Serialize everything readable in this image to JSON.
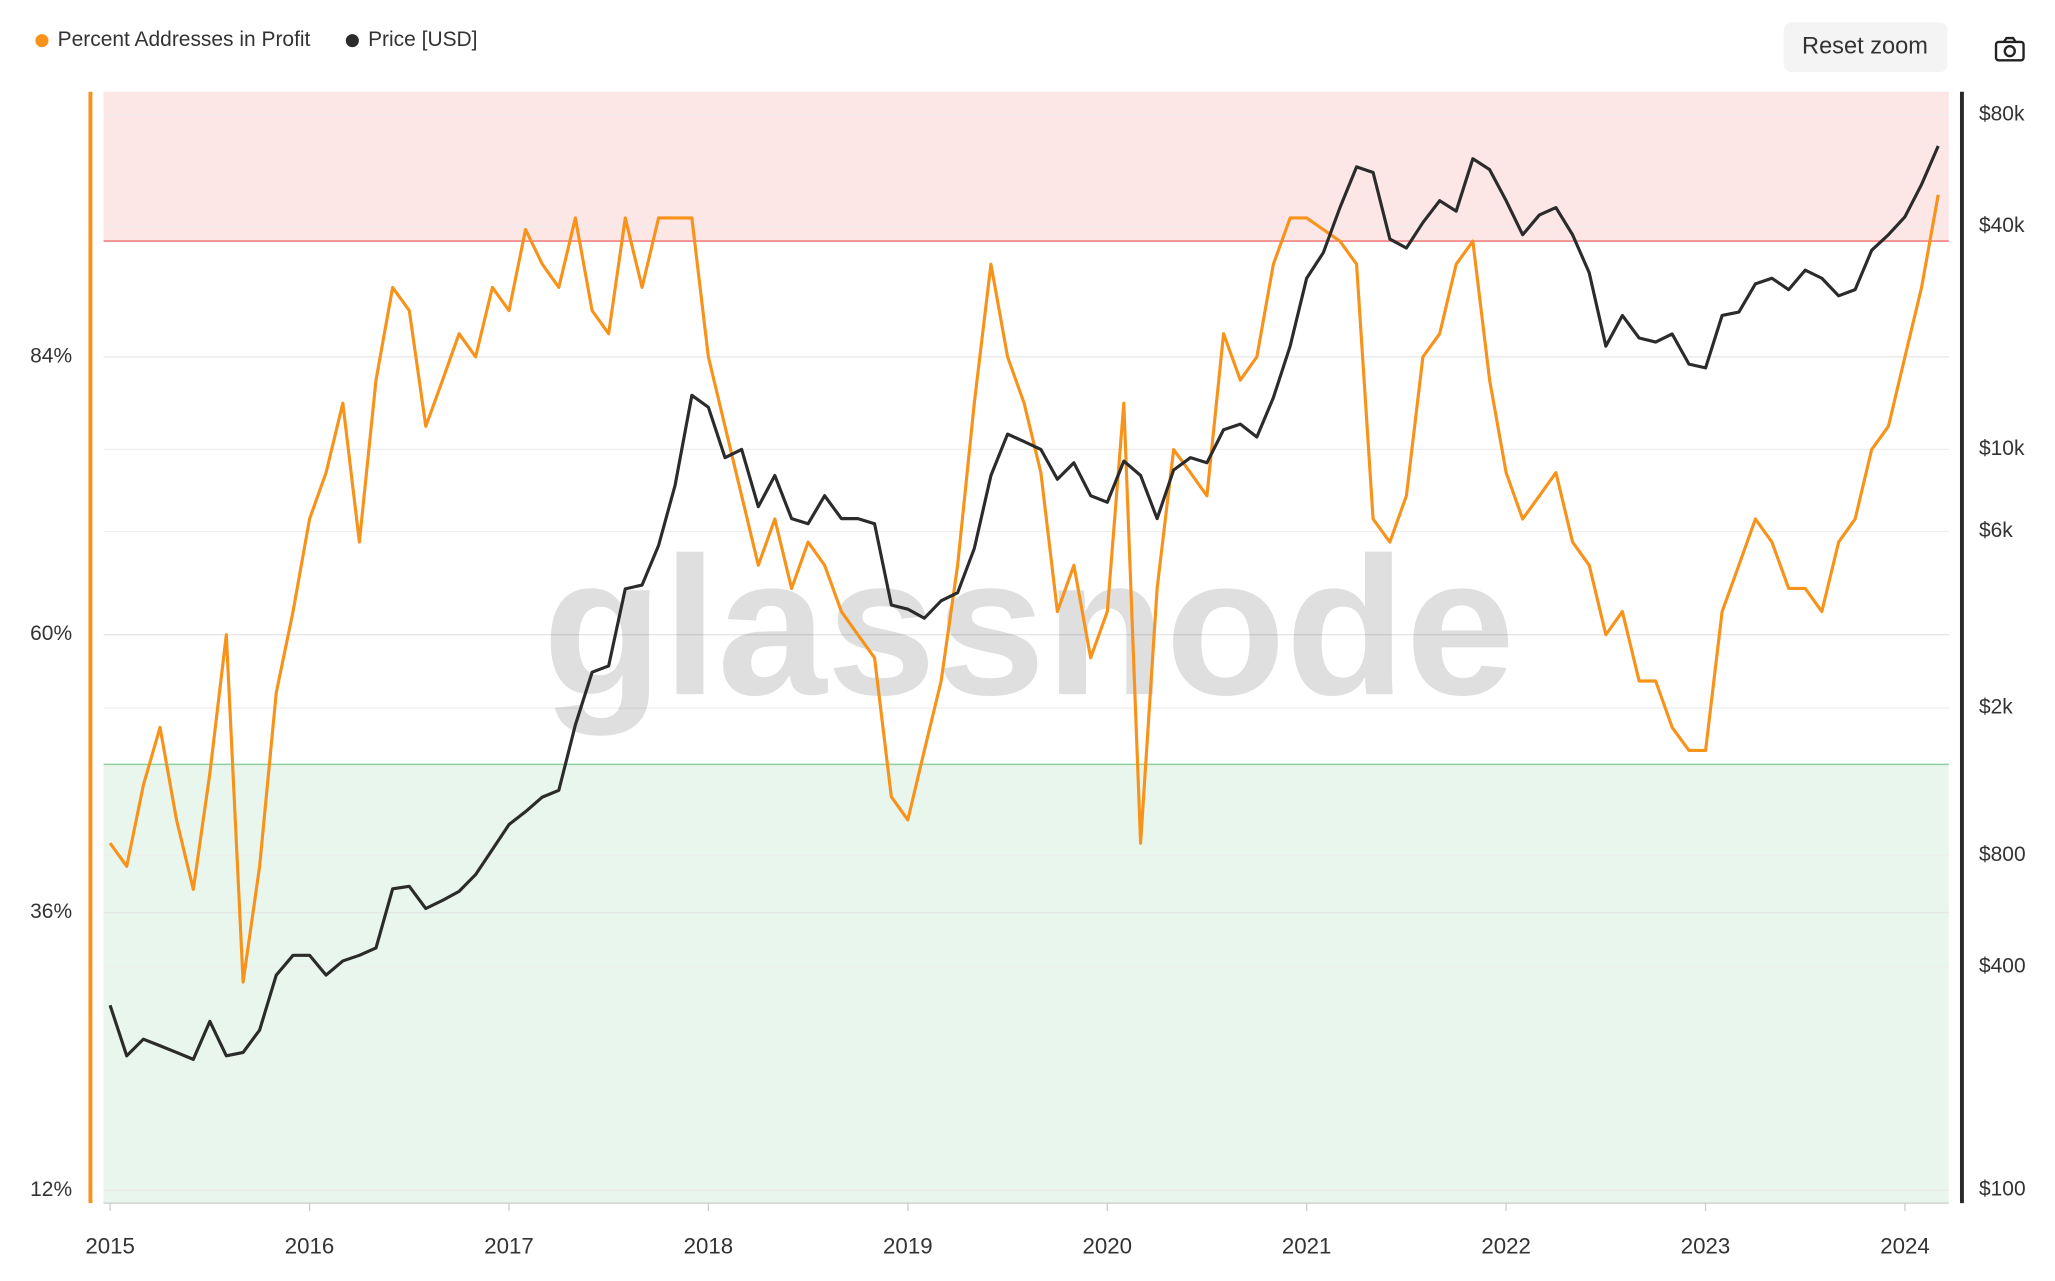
{
  "chart_data": {
    "type": "line",
    "watermark": "glassnode",
    "reset_zoom": "Reset zoom",
    "xlim": [
      2014.967,
      2024.22
    ],
    "xticks": [
      2015,
      2016,
      2017,
      2018,
      2019,
      2020,
      2021,
      2022,
      2023,
      2024
    ],
    "ylim": [
      10.9,
      106.9
    ],
    "yticks": [
      {
        "value": 12,
        "label": "12%"
      },
      {
        "value": 36,
        "label": "36%"
      },
      {
        "value": 60,
        "label": "60%"
      },
      {
        "value": 84,
        "label": "84%"
      }
    ],
    "y2lim": [
      92,
      92500
    ],
    "y2scale": "log",
    "y2ticks": [
      {
        "value": 100,
        "label": "$100"
      },
      {
        "value": 400,
        "label": "$400"
      },
      {
        "value": 800,
        "label": "$800"
      },
      {
        "value": 2000,
        "label": "$2k"
      },
      {
        "value": 6000,
        "label": "$6k"
      },
      {
        "value": 10000,
        "label": "$10k"
      },
      {
        "value": 40000,
        "label": "$40k"
      },
      {
        "value": 80000,
        "label": "$80k"
      }
    ],
    "grid": true,
    "bands": [
      {
        "from": 94,
        "to": 106.9,
        "color": "#fde6e6",
        "edge": "#f08080"
      },
      {
        "from": 10.9,
        "to": 48.8,
        "color": "#e9f6ee",
        "edge": "#8fd19e"
      }
    ],
    "x": [
      2015.0,
      2015.083,
      2015.167,
      2015.25,
      2015.333,
      2015.417,
      2015.5,
      2015.583,
      2015.667,
      2015.75,
      2015.833,
      2015.917,
      2016.0,
      2016.083,
      2016.167,
      2016.25,
      2016.333,
      2016.417,
      2016.5,
      2016.583,
      2016.667,
      2016.75,
      2016.833,
      2016.917,
      2017.0,
      2017.083,
      2017.167,
      2017.25,
      2017.333,
      2017.417,
      2017.5,
      2017.583,
      2017.667,
      2017.75,
      2017.833,
      2017.917,
      2018.0,
      2018.083,
      2018.167,
      2018.25,
      2018.333,
      2018.417,
      2018.5,
      2018.583,
      2018.667,
      2018.75,
      2018.833,
      2018.917,
      2019.0,
      2019.083,
      2019.167,
      2019.25,
      2019.333,
      2019.417,
      2019.5,
      2019.583,
      2019.667,
      2019.75,
      2019.833,
      2019.917,
      2020.0,
      2020.083,
      2020.167,
      2020.25,
      2020.333,
      2020.417,
      2020.5,
      2020.583,
      2020.667,
      2020.75,
      2020.833,
      2020.917,
      2021.0,
      2021.083,
      2021.167,
      2021.25,
      2021.333,
      2021.417,
      2021.5,
      2021.583,
      2021.667,
      2021.75,
      2021.833,
      2021.917,
      2022.0,
      2022.083,
      2022.167,
      2022.25,
      2022.333,
      2022.417,
      2022.5,
      2022.583,
      2022.667,
      2022.75,
      2022.833,
      2022.917,
      2023.0,
      2023.083,
      2023.167,
      2023.25,
      2023.333,
      2023.417,
      2023.5,
      2023.583,
      2023.667,
      2023.75,
      2023.833,
      2023.917,
      2024.0,
      2024.083,
      2024.167
    ],
    "series": [
      {
        "name": "Percent Addresses in Profit",
        "color": "#f7931a",
        "values": [
          42,
          40,
          47,
          52,
          44,
          38,
          48,
          60,
          30,
          40,
          55,
          62,
          70,
          74,
          80,
          68,
          82,
          90,
          88,
          78,
          82,
          86,
          84,
          90,
          88,
          95,
          92,
          90,
          96,
          88,
          86,
          96,
          90,
          96,
          96,
          96,
          84,
          78,
          72,
          66,
          70,
          64,
          68,
          66,
          62,
          60,
          58,
          46,
          44,
          50,
          56,
          66,
          80,
          92,
          84,
          80,
          74,
          62,
          66,
          58,
          62,
          80,
          42,
          64,
          76,
          74,
          72,
          86,
          82,
          84,
          92,
          96,
          96,
          95,
          94,
          92,
          70,
          68,
          72,
          84,
          86,
          92,
          94,
          82,
          74,
          70,
          72,
          74,
          68,
          66,
          60,
          62,
          56,
          56,
          52,
          50,
          50,
          62,
          66,
          70,
          68,
          64,
          64,
          62,
          68,
          70,
          76,
          78,
          84,
          90,
          98
        ]
      },
      {
        "name": "Price [USD]",
        "color": "#2b2b2b",
        "axis": "y2",
        "values": [
          315,
          230,
          255,
          245,
          235,
          225,
          285,
          230,
          235,
          270,
          380,
          430,
          430,
          380,
          415,
          430,
          450,
          650,
          660,
          575,
          605,
          640,
          710,
          830,
          970,
          1050,
          1150,
          1200,
          1800,
          2500,
          2600,
          4200,
          4300,
          5500,
          8000,
          14000,
          13000,
          9500,
          10000,
          7000,
          8500,
          6500,
          6300,
          7500,
          6500,
          6500,
          6300,
          3800,
          3700,
          3500,
          3900,
          4100,
          5400,
          8500,
          11000,
          10500,
          10000,
          8300,
          9200,
          7500,
          7200,
          9300,
          8500,
          6500,
          8800,
          9500,
          9200,
          11300,
          11700,
          10800,
          13800,
          19000,
          29000,
          34000,
          45000,
          58000,
          56000,
          37000,
          35000,
          41000,
          47000,
          44000,
          61000,
          57000,
          47000,
          38000,
          43000,
          45000,
          38000,
          30000,
          19000,
          23000,
          20000,
          19500,
          20500,
          17000,
          16600,
          23000,
          23500,
          28000,
          29000,
          27000,
          30500,
          29000,
          26000,
          27000,
          34500,
          38000,
          42500,
          52000,
          66000
        ]
      }
    ]
  }
}
